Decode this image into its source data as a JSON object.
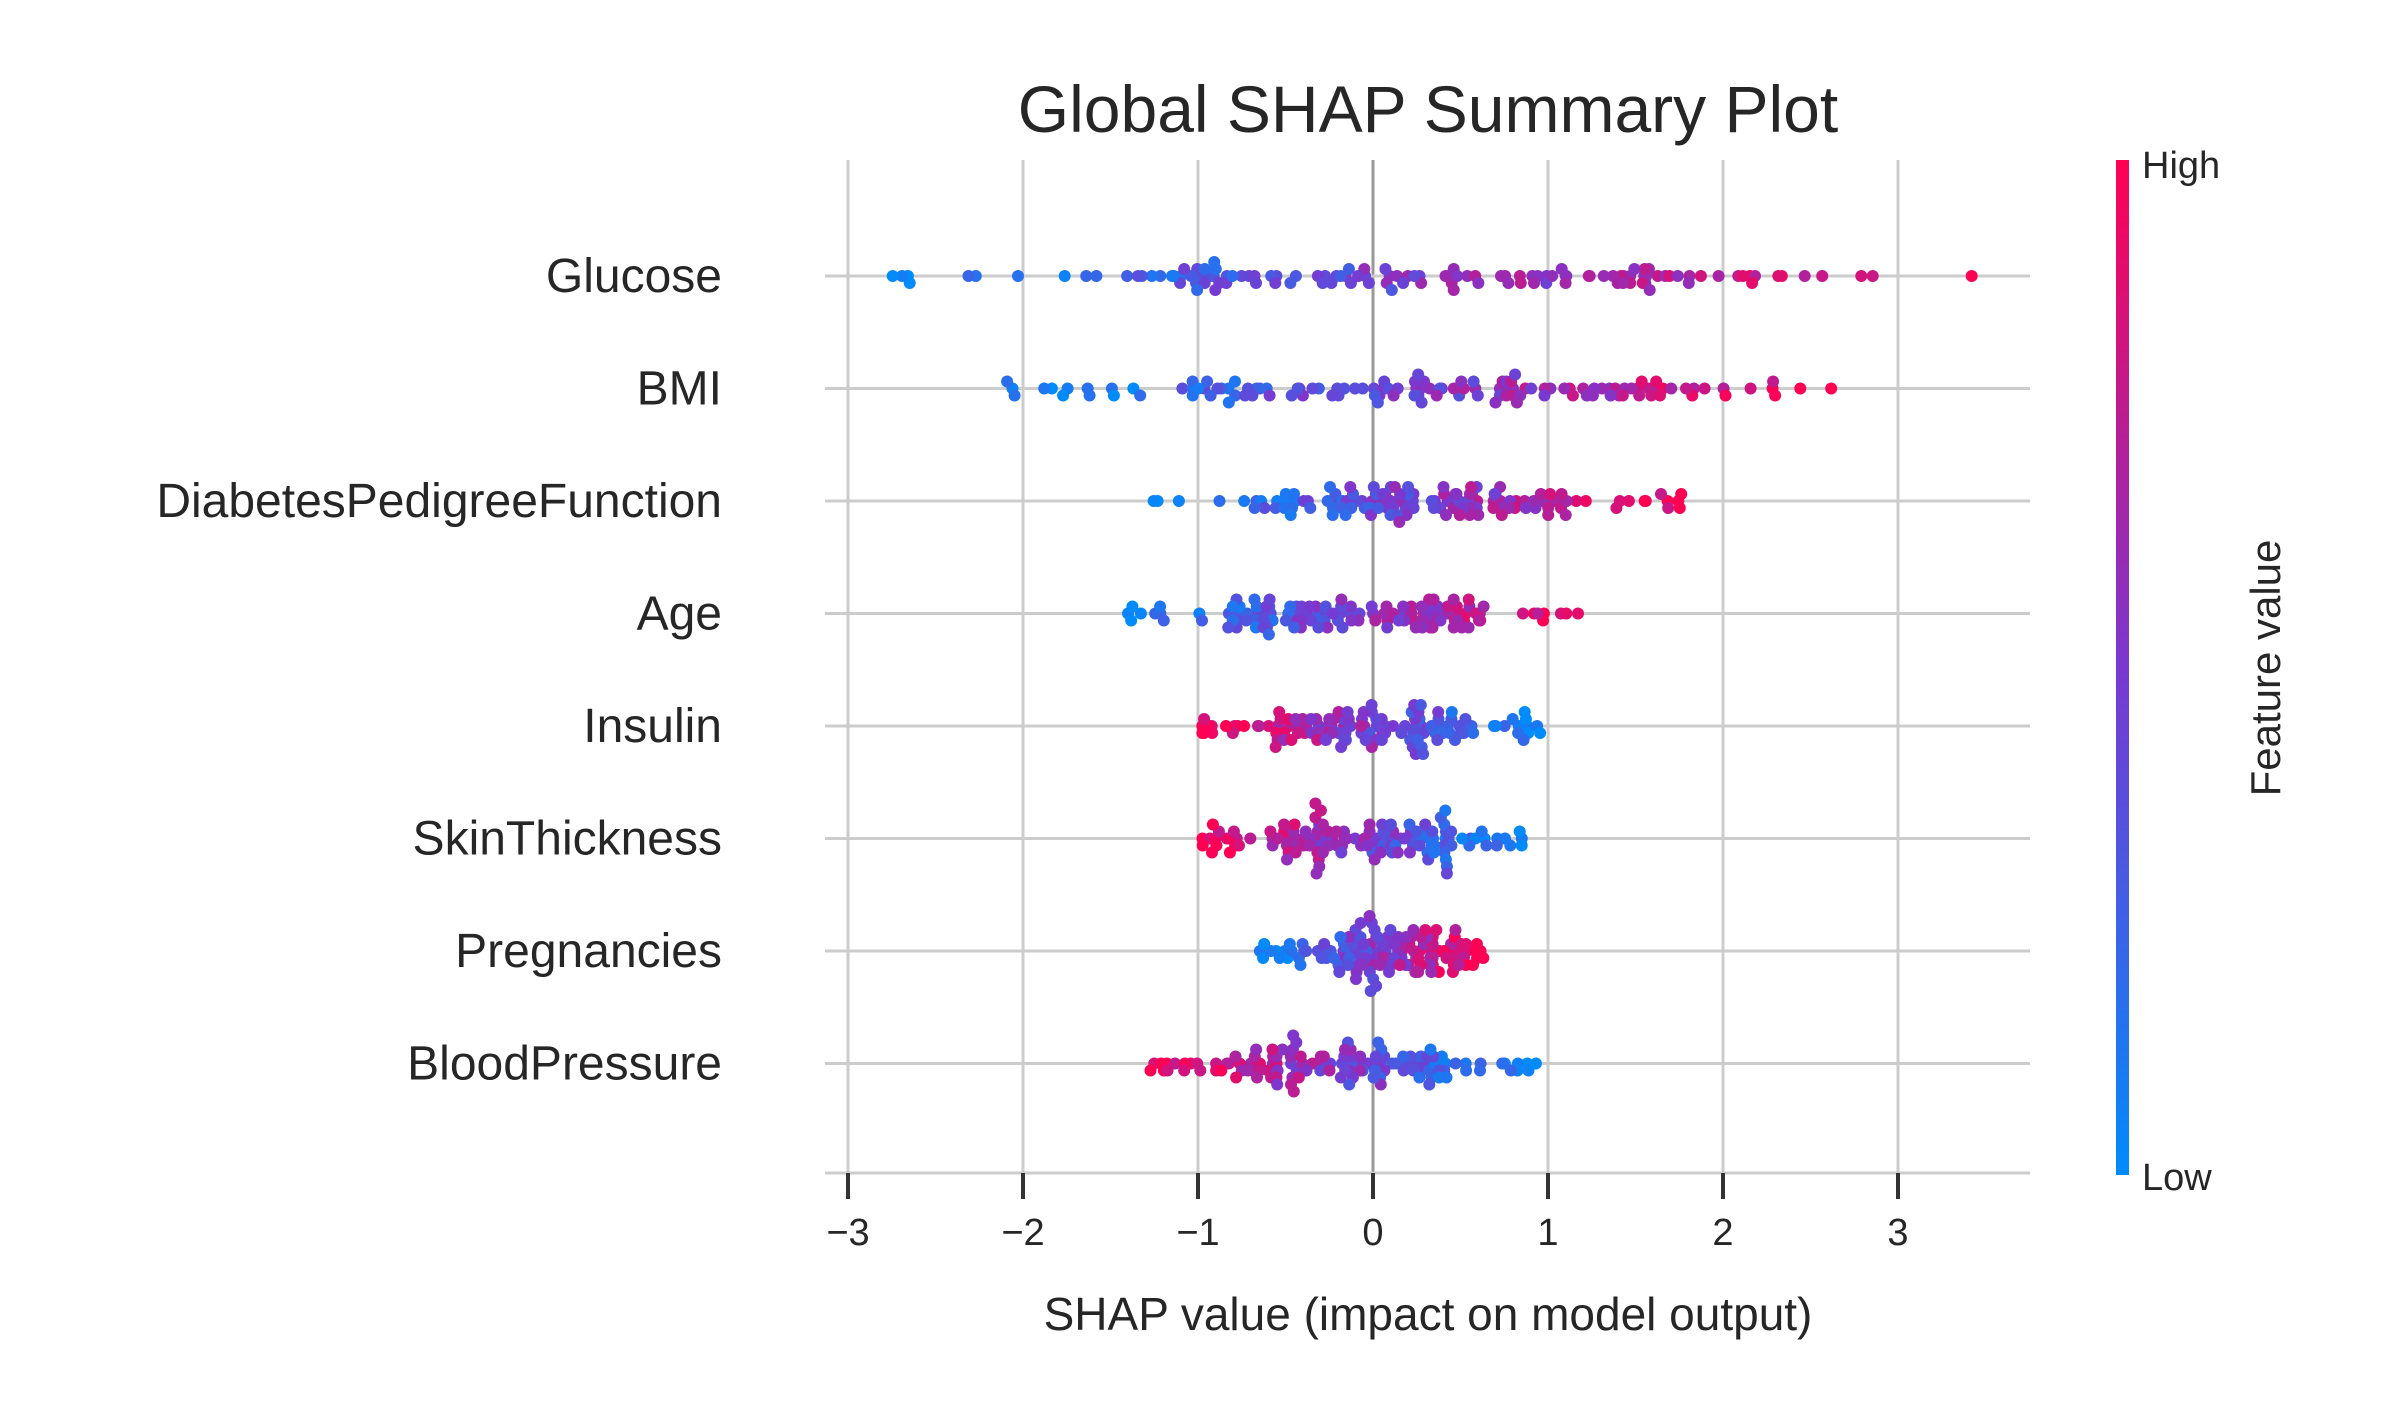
{
  "chart_data": {
    "type": "scatter",
    "subtype": "beeswarm",
    "title": "Global SHAP Summary Plot",
    "xlabel": "SHAP value (impact on model output)",
    "xlim": [
      -3.15,
      3.8
    ],
    "xticks": [
      -3,
      -2,
      -1,
      0,
      1,
      2,
      3
    ],
    "xtick_labels": [
      "−3",
      "−2",
      "−1",
      "0",
      "1",
      "2",
      "3"
    ],
    "grid": true,
    "features": [
      {
        "name": "Glucose",
        "min": -2.85,
        "max": 3.45,
        "low_side": "left"
      },
      {
        "name": "BMI",
        "min": -2.15,
        "max": 2.8,
        "low_side": "left"
      },
      {
        "name": "DiabetesPedigreeFunction",
        "min": -1.28,
        "max": 1.88,
        "low_side": "left"
      },
      {
        "name": "Age",
        "min": -1.42,
        "max": 1.22,
        "low_side": "left"
      },
      {
        "name": "Insulin",
        "min": -1.0,
        "max": 0.98,
        "low_side": "right"
      },
      {
        "name": "SkinThickness",
        "min": -1.0,
        "max": 0.88,
        "low_side": "right"
      },
      {
        "name": "Pregnancies",
        "min": -0.65,
        "max": 0.65,
        "low_side": "left"
      },
      {
        "name": "BloodPressure",
        "min": -1.28,
        "max": 0.95,
        "low_side": "right"
      }
    ],
    "colorbar": {
      "label": "Feature value",
      "high_label": "High",
      "low_label": "Low",
      "low_color": "#008bfb",
      "mid_color": "#7a38d0",
      "high_color": "#ff0052"
    }
  }
}
